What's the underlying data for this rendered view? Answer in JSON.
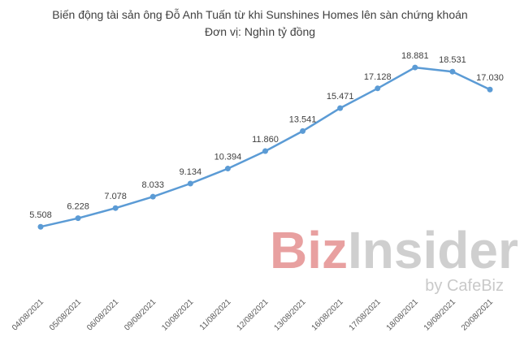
{
  "chart_data": {
    "type": "line",
    "title": "Biến động tài sản ông Đỗ Anh Tuấn từ khi Sunshines Homes lên sàn chứng khoán",
    "subtitle": "Đơn vị: Nghìn tỷ đồng",
    "categories": [
      "04/08/2021",
      "05/08/2021",
      "06/08/2021",
      "09/08/2021",
      "10/08/2021",
      "11/08/2021",
      "12/08/2021",
      "13/08/2021",
      "16/08/2021",
      "17/08/2021",
      "18/08/2021",
      "19/08/2021",
      "20/08/2021"
    ],
    "series": [
      {
        "values": [
          5.508,
          6.228,
          7.078,
          8.033,
          9.134,
          10.394,
          11.86,
          13.541,
          15.471,
          17.128,
          18.881,
          18.531,
          17.03
        ]
      }
    ],
    "data_labels": [
      "5.508",
      "6.228",
      "7.078",
      "8.033",
      "9.134",
      "10.394",
      "11.860",
      "13.541",
      "15.471",
      "17.128",
      "18.881",
      "18.531",
      "17.030"
    ],
    "ylim": [
      0,
      21
    ],
    "grid": false,
    "line_color": "#5b9bd5"
  },
  "watermark": {
    "brand_a": "Biz",
    "brand_b": "Insider",
    "byline": "by CafeBiz",
    "color_a": "#e8a0a0",
    "color_b": "#cfcfcf"
  }
}
